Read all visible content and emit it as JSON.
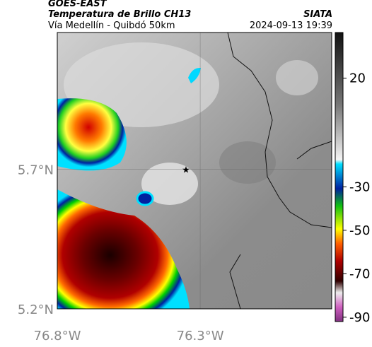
{
  "header": {
    "title": "GOES-EAST",
    "subtitle": "Temperatura de Brillo CH13",
    "location": "Vía Medellín - Quibdó 50km",
    "source": "SIATA",
    "datetime": "2024-09-13 19:39"
  },
  "map": {
    "xlim": [
      -76.8,
      -75.84
    ],
    "ylim": [
      5.2,
      6.19
    ],
    "xticks": [
      {
        "value": -76.8,
        "label": "76.8°W"
      },
      {
        "value": -76.3,
        "label": "76.3°W"
      }
    ],
    "yticks": [
      {
        "value": 5.2,
        "label": "5.2°N"
      },
      {
        "value": 5.7,
        "label": "5.7°N"
      }
    ]
  },
  "colorbar": {
    "ylim": [
      -92,
      41
    ],
    "ticks": [
      20,
      -30,
      -50,
      -70,
      -90
    ]
  }
}
